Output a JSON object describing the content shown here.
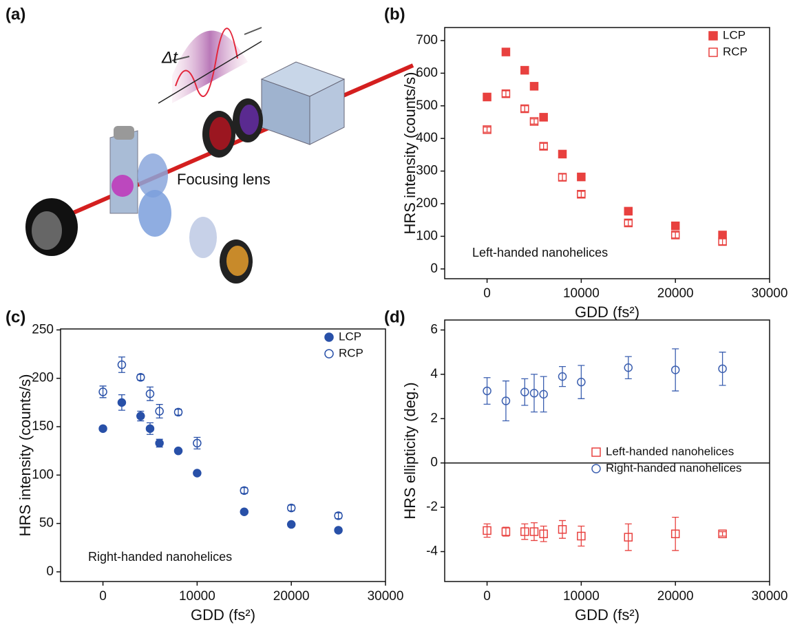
{
  "schematic": {
    "label": "(a)",
    "pulse_width": "Δt",
    "lens": "Focusing lens"
  },
  "chart_data": [
    {
      "type": "scatter",
      "label": "(b)",
      "annotation": "Left-handed nanohelices",
      "x_label": "GDD (fs²)",
      "y_label": "HRS intensity (counts/s)",
      "xlim": [
        -4500,
        30000
      ],
      "xticks": [
        0,
        10000,
        20000,
        30000
      ],
      "ylim": [
        -30,
        740
      ],
      "yticks": [
        0,
        100,
        200,
        300,
        400,
        500,
        600,
        700
      ],
      "legend": "upper right",
      "x": [
        0,
        2000,
        4000,
        5000,
        6000,
        8000,
        10000,
        15000,
        20000,
        25000
      ],
      "series": [
        {
          "name": "LCP",
          "color": "#e8413f",
          "marker": "square",
          "filled": true,
          "values": [
            527,
            665,
            609,
            560,
            465,
            352,
            282,
            177,
            132,
            104
          ],
          "errors": [
            5,
            6,
            6,
            5,
            5,
            5,
            5,
            4,
            4,
            4
          ]
        },
        {
          "name": "RCP",
          "color": "#e8413f",
          "marker": "square",
          "filled": false,
          "values": [
            427,
            537,
            491,
            452,
            376,
            281,
            229,
            141,
            104,
            84
          ],
          "errors": [
            8,
            9,
            9,
            8,
            9,
            10,
            9,
            9,
            9,
            10
          ]
        }
      ]
    },
    {
      "type": "scatter",
      "label": "(c)",
      "annotation": "Right-handed nanohelices",
      "x_label": "GDD (fs²)",
      "y_label": "HRS intensity (counts/s)",
      "xlim": [
        -4500,
        30000
      ],
      "xticks": [
        0,
        10000,
        20000,
        30000
      ],
      "ylim": [
        -10,
        251
      ],
      "yticks": [
        0,
        50,
        100,
        150,
        200,
        250
      ],
      "legend": "upper right",
      "x": [
        0,
        2000,
        4000,
        5000,
        6000,
        8000,
        10000,
        15000,
        20000,
        25000
      ],
      "series": [
        {
          "name": "LCP",
          "color": "#2850a8",
          "marker": "circle",
          "filled": true,
          "values": [
            148,
            175,
            161,
            148,
            133,
            125,
            102,
            62,
            49,
            43
          ],
          "errors": [
            2,
            8,
            5,
            6,
            4,
            2,
            2,
            2,
            2,
            2
          ]
        },
        {
          "name": "RCP",
          "color": "#2850a8",
          "marker": "circle",
          "filled": false,
          "values": [
            186,
            214,
            201,
            184,
            166,
            165,
            133,
            84,
            66,
            58
          ],
          "errors": [
            6,
            8,
            3,
            7,
            7,
            3,
            6,
            3,
            3,
            3
          ]
        }
      ]
    },
    {
      "type": "scatter",
      "label": "(d)",
      "x_label": "GDD (fs²)",
      "y_label": "HRS ellipticity (deg.)",
      "xlim": [
        -4500,
        30000
      ],
      "xticks": [
        0,
        10000,
        20000,
        30000
      ],
      "ylim": [
        -5.35,
        6.45
      ],
      "yticks": [
        -4,
        -2,
        0,
        2,
        4,
        6
      ],
      "zero_line": true,
      "legend": "lower right",
      "x": [
        0,
        2000,
        4000,
        5000,
        6000,
        8000,
        10000,
        15000,
        20000,
        25000
      ],
      "series": [
        {
          "name": "Left-handed nanohelices",
          "color": "#e8413f",
          "marker": "square",
          "filled": false,
          "values": [
            -3.05,
            -3.1,
            -3.1,
            -3.1,
            -3.2,
            -3.0,
            -3.3,
            -3.35,
            -3.2,
            -3.2
          ],
          "errors": [
            0.3,
            0.2,
            0.35,
            0.4,
            0.35,
            0.4,
            0.45,
            0.6,
            0.75,
            0.1
          ]
        },
        {
          "name": "Right-handed nanohelices",
          "color": "#3b5fb0",
          "marker": "circle",
          "filled": false,
          "values": [
            3.25,
            2.8,
            3.2,
            3.15,
            3.1,
            3.9,
            3.65,
            4.3,
            4.2,
            4.25
          ],
          "errors": [
            0.6,
            0.9,
            0.6,
            0.85,
            0.8,
            0.45,
            0.75,
            0.5,
            0.95,
            0.75
          ]
        }
      ]
    }
  ]
}
